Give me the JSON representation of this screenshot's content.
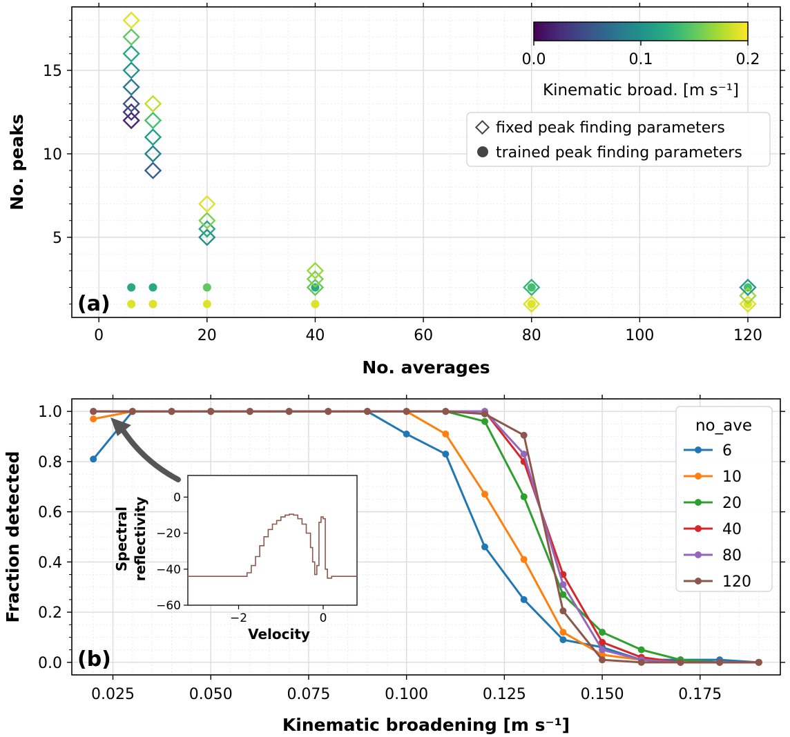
{
  "chart_data": [
    {
      "type": "scatter",
      "panel_label": "(a)",
      "xlabel": "No. averages",
      "ylabel": "No. peaks",
      "xlim": [
        -5,
        126
      ],
      "ylim": [
        0.2,
        18.8
      ],
      "xticks": [
        0,
        20,
        40,
        60,
        80,
        100,
        120
      ],
      "xticklabels": [
        "0",
        "20",
        "40",
        "60",
        "80",
        "100",
        "120"
      ],
      "yticks": [
        5,
        10,
        15
      ],
      "yticklabels": [
        "5",
        "10",
        "15"
      ],
      "grid": true,
      "colorbar": {
        "label": "Kinematic broad. [m s⁻¹]",
        "range": [
          0.0,
          0.2
        ],
        "ticks": [
          0.0,
          0.1,
          0.2
        ],
        "ticklabels": [
          "0.0",
          "0.1",
          "0.2"
        ],
        "colormap": "viridis"
      },
      "legend": {
        "placement": "right",
        "entries": [
          "fixed peak finding parameters",
          "trained peak finding parameters"
        ]
      },
      "series": [
        {
          "name": "fixed peak finding parameters",
          "marker": "diamond",
          "points": [
            {
              "x": 6,
              "y": 12,
              "c": 0.02
            },
            {
              "x": 6,
              "y": 12.5,
              "c": 0.03
            },
            {
              "x": 6,
              "y": 13,
              "c": 0.05
            },
            {
              "x": 6,
              "y": 14,
              "c": 0.08
            },
            {
              "x": 6,
              "y": 15,
              "c": 0.1
            },
            {
              "x": 6,
              "y": 16,
              "c": 0.12
            },
            {
              "x": 6,
              "y": 17,
              "c": 0.15
            },
            {
              "x": 6,
              "y": 18,
              "c": 0.19
            },
            {
              "x": 10,
              "y": 9,
              "c": 0.06
            },
            {
              "x": 10,
              "y": 10,
              "c": 0.09
            },
            {
              "x": 10,
              "y": 11,
              "c": 0.11
            },
            {
              "x": 10,
              "y": 12,
              "c": 0.14
            },
            {
              "x": 10,
              "y": 13,
              "c": 0.18
            },
            {
              "x": 20,
              "y": 5,
              "c": 0.1
            },
            {
              "x": 20,
              "y": 5.5,
              "c": 0.12
            },
            {
              "x": 20,
              "y": 6,
              "c": 0.16
            },
            {
              "x": 20,
              "y": 7,
              "c": 0.19
            },
            {
              "x": 40,
              "y": 2,
              "c": 0.15
            },
            {
              "x": 40,
              "y": 2.5,
              "c": 0.16
            },
            {
              "x": 40,
              "y": 3,
              "c": 0.17
            },
            {
              "x": 80,
              "y": 1,
              "c": 0.19
            },
            {
              "x": 80,
              "y": 2,
              "c": 0.13
            },
            {
              "x": 120,
              "y": 1,
              "c": 0.19
            },
            {
              "x": 120,
              "y": 1.5,
              "c": 0.17
            },
            {
              "x": 120,
              "y": 2,
              "c": 0.11
            }
          ]
        },
        {
          "name": "trained peak finding parameters",
          "marker": "circle",
          "points": [
            {
              "x": 6,
              "y": 1,
              "c": 0.19
            },
            {
              "x": 6,
              "y": 2,
              "c": 0.12
            },
            {
              "x": 10,
              "y": 1,
              "c": 0.19
            },
            {
              "x": 10,
              "y": 2,
              "c": 0.12
            },
            {
              "x": 20,
              "y": 1,
              "c": 0.19
            },
            {
              "x": 20,
              "y": 2,
              "c": 0.15
            },
            {
              "x": 40,
              "y": 1,
              "c": 0.19
            },
            {
              "x": 40,
              "y": 2,
              "c": 0.12
            },
            {
              "x": 80,
              "y": 1,
              "c": 0.19
            },
            {
              "x": 80,
              "y": 2,
              "c": 0.14
            },
            {
              "x": 120,
              "y": 1,
              "c": 0.19
            },
            {
              "x": 120,
              "y": 2,
              "c": 0.14
            }
          ]
        }
      ]
    },
    {
      "type": "line",
      "panel_label": "(b)",
      "xlabel": "Kinematic broadening [m s⁻¹]",
      "ylabel": "Fraction detected",
      "xlim": [
        0.0145,
        0.1955
      ],
      "ylim": [
        -0.05,
        1.05
      ],
      "xticks": [
        0.025,
        0.05,
        0.075,
        0.1,
        0.125,
        0.15,
        0.175
      ],
      "xticklabels": [
        "0.025",
        "0.050",
        "0.075",
        "0.100",
        "0.125",
        "0.150",
        "0.175"
      ],
      "yticks": [
        0,
        0.2,
        0.4,
        0.6,
        0.8,
        1.0
      ],
      "yticklabels": [
        "0.0",
        "0.2",
        "0.4",
        "0.6",
        "0.8",
        "1.0"
      ],
      "grid": true,
      "legend": {
        "title": "no_ave",
        "placement": "top-right"
      },
      "x": [
        0.02,
        0.03,
        0.04,
        0.05,
        0.06,
        0.07,
        0.08,
        0.09,
        0.1,
        0.11,
        0.12,
        0.13,
        0.14,
        0.15,
        0.16,
        0.17,
        0.18,
        0.19
      ],
      "series": [
        {
          "name": "6",
          "color": "#1f77b4",
          "values": [
            0.81,
            1.0,
            1.0,
            1.0,
            1.0,
            1.0,
            1.0,
            1.0,
            0.91,
            0.83,
            0.46,
            0.25,
            0.09,
            0.06,
            0.01,
            0.01,
            0.01,
            0.0
          ]
        },
        {
          "name": "10",
          "color": "#ff7f0e",
          "values": [
            0.97,
            1.0,
            1.0,
            1.0,
            1.0,
            1.0,
            1.0,
            1.0,
            1.0,
            0.91,
            0.67,
            0.41,
            0.12,
            0.03,
            0.01,
            0.0,
            0.0,
            0.0
          ]
        },
        {
          "name": "20",
          "color": "#2ca02c",
          "values": [
            1.0,
            1.0,
            1.0,
            1.0,
            1.0,
            1.0,
            1.0,
            1.0,
            1.0,
            1.0,
            0.96,
            0.66,
            0.27,
            0.12,
            0.05,
            0.01,
            0.0,
            0.0
          ]
        },
        {
          "name": "40",
          "color": "#d62728",
          "values": [
            1.0,
            1.0,
            1.0,
            1.0,
            1.0,
            1.0,
            1.0,
            1.0,
            1.0,
            1.0,
            1.0,
            0.8,
            0.35,
            0.08,
            0.02,
            0.0,
            0.0,
            0.0
          ]
        },
        {
          "name": "80",
          "color": "#9467bd",
          "values": [
            1.0,
            1.0,
            1.0,
            1.0,
            1.0,
            1.0,
            1.0,
            1.0,
            1.0,
            1.0,
            1.0,
            0.83,
            0.31,
            0.05,
            0.01,
            0.0,
            0.0,
            0.0
          ]
        },
        {
          "name": "120",
          "color": "#8c564b",
          "values": [
            1.0,
            1.0,
            1.0,
            1.0,
            1.0,
            1.0,
            1.0,
            1.0,
            1.0,
            1.0,
            0.99,
            0.905,
            0.205,
            0.01,
            0.0,
            0.0,
            0.0,
            0.0
          ]
        }
      ],
      "inset": {
        "type": "line",
        "xlabel": "Velocity",
        "ylabel": "Spectral reflectivity",
        "xlim": [
          -3.2,
          0.8
        ],
        "ylim": [
          -60,
          12
        ],
        "xticks": [
          -2,
          0
        ],
        "xticklabels": [
          "−2",
          "0"
        ],
        "yticks": [
          0,
          -20,
          -40,
          -60
        ],
        "yticklabels": [
          "0",
          "−20",
          "−40",
          "−60"
        ],
        "color": "#8c564b",
        "x": [
          -3.2,
          -2.7,
          -2.2,
          -1.9,
          -1.8,
          -1.7,
          -1.6,
          -1.5,
          -1.4,
          -1.3,
          -1.2,
          -1.1,
          -1.0,
          -0.9,
          -0.8,
          -0.7,
          -0.6,
          -0.5,
          -0.4,
          -0.3,
          -0.25,
          -0.2,
          -0.15,
          -0.1,
          -0.05,
          0.0,
          0.05,
          0.1,
          0.2,
          0.4,
          0.8
        ],
        "values": [
          -44,
          -44,
          -44,
          -44,
          -42,
          -38,
          -33,
          -27,
          -22,
          -18,
          -15,
          -13,
          -11,
          -10,
          -9.5,
          -10,
          -12,
          -15,
          -20,
          -28,
          -36,
          -43,
          -38,
          -14,
          -11,
          -12,
          -40,
          -45,
          -44,
          -44,
          -44
        ]
      }
    }
  ]
}
